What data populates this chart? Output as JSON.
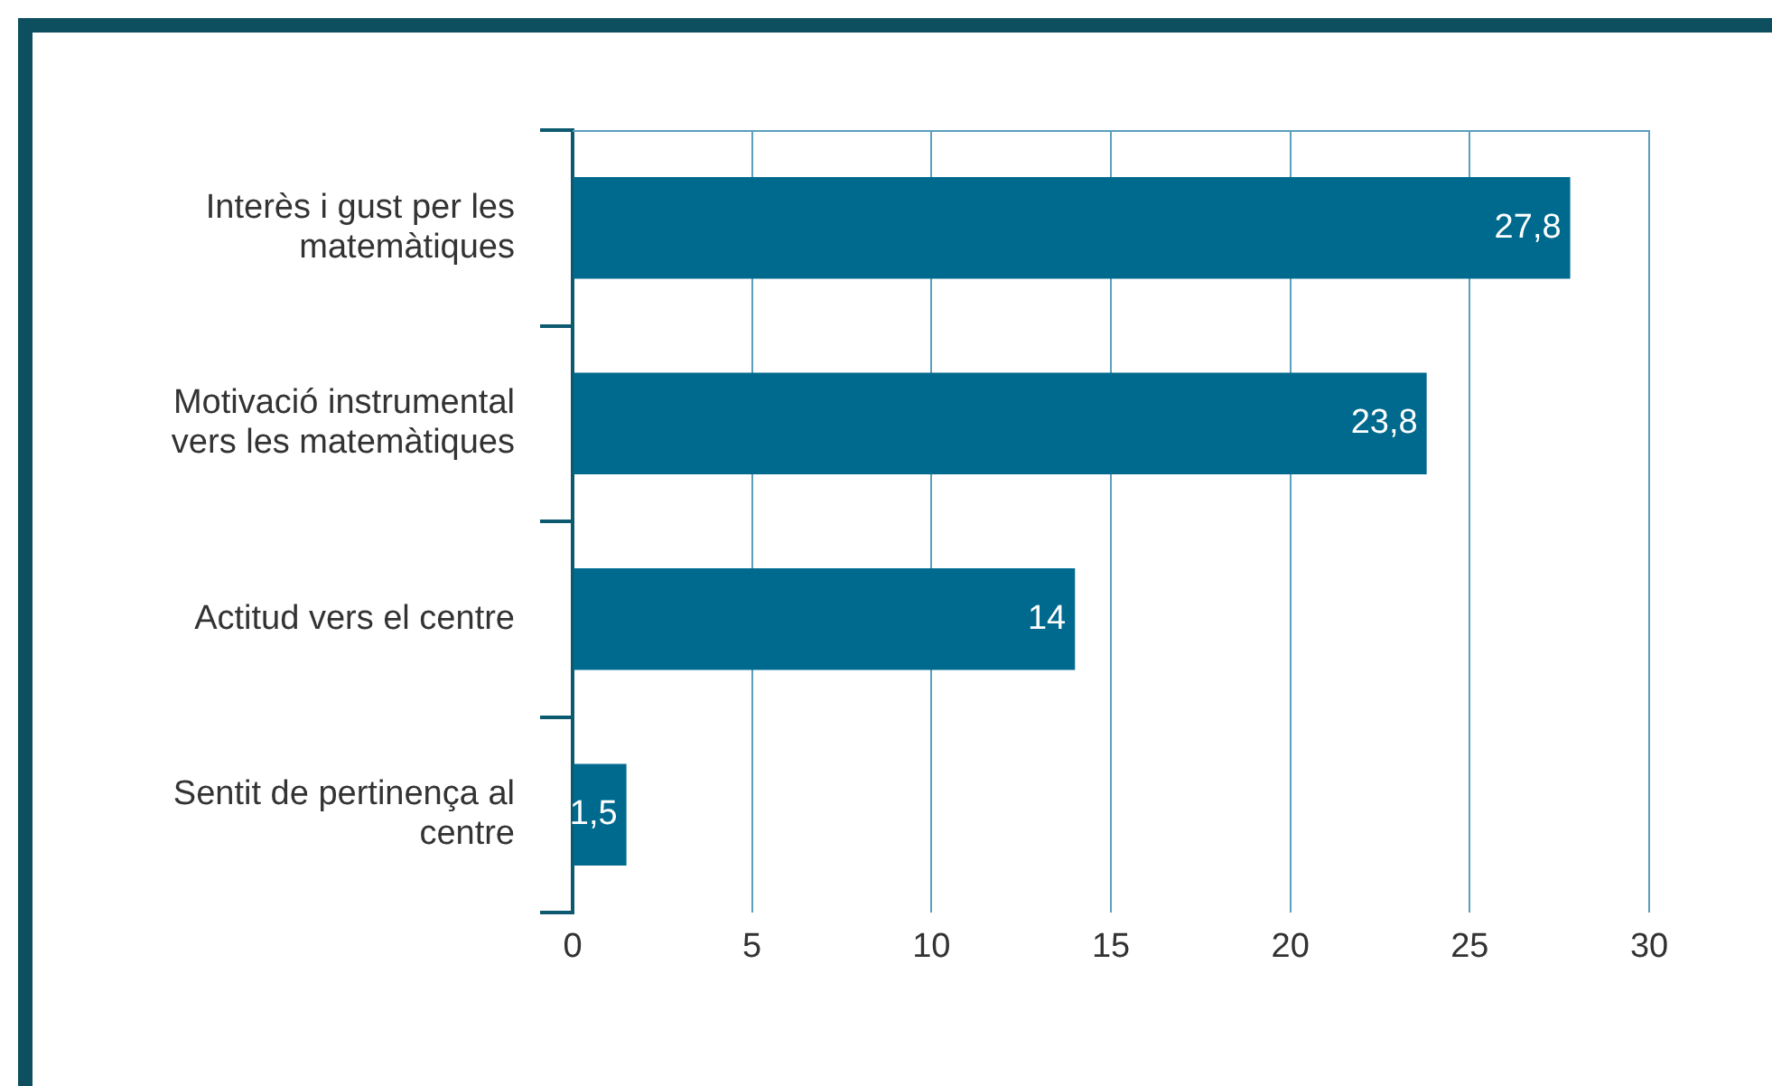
{
  "chart_data": {
    "type": "bar",
    "orientation": "horizontal",
    "categories": [
      "Interès i gust per les matemàtiques",
      "Motivació instrumental vers les matemàtiques",
      "Actitud vers el centre",
      "Sentit de pertinença al centre"
    ],
    "values": [
      27.8,
      23.8,
      14,
      1.5
    ],
    "value_labels": [
      "27,8",
      "23,8",
      "14",
      "1,5"
    ],
    "color": "#006a8e",
    "xlim": [
      0,
      30
    ],
    "xticks": [
      0,
      5,
      10,
      15,
      20,
      25,
      30
    ],
    "grid": "x",
    "legend": false
  }
}
